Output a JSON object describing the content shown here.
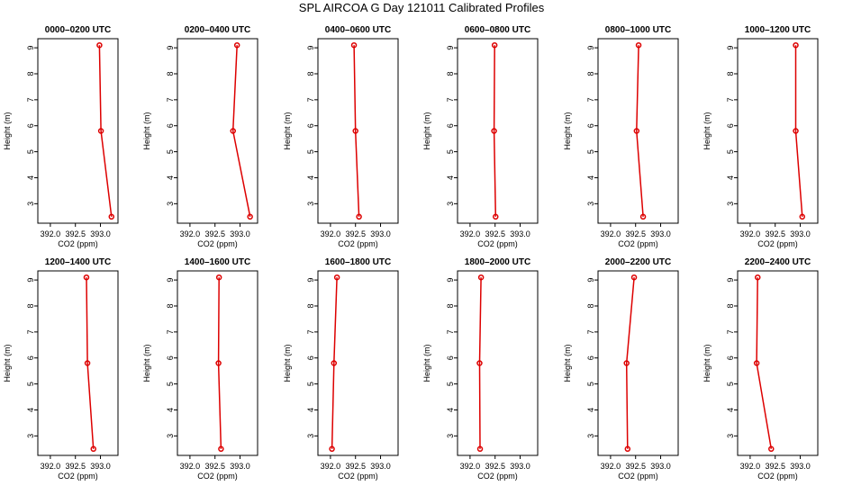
{
  "title": "SPL AIRCOA G  Day 121011  Calibrated Profiles",
  "colors": {
    "line": "#dd0000",
    "axis": "#000000"
  },
  "chart_data": {
    "type": "line",
    "xlabel": "CO2 (ppm)",
    "ylabel": "Height (m)",
    "xlim": [
      391.75,
      393.35
    ],
    "ylim": [
      2.25,
      9.35
    ],
    "xticks": [
      "392.0",
      "392.5",
      "393.0"
    ],
    "yticks": [
      "3",
      "4",
      "5",
      "6",
      "7",
      "8",
      "9"
    ],
    "panels": [
      {
        "title": "0000–0200 UTC",
        "points": [
          {
            "x": 393.22,
            "y": 2.5
          },
          {
            "x": 393.01,
            "y": 5.8
          },
          {
            "x": 392.98,
            "y": 9.1
          }
        ]
      },
      {
        "title": "0200–0400 UTC",
        "points": [
          {
            "x": 393.2,
            "y": 2.5
          },
          {
            "x": 392.86,
            "y": 5.8
          },
          {
            "x": 392.94,
            "y": 9.1
          }
        ]
      },
      {
        "title": "0400–0600 UTC",
        "points": [
          {
            "x": 392.57,
            "y": 2.5
          },
          {
            "x": 392.5,
            "y": 5.8
          },
          {
            "x": 392.47,
            "y": 9.1
          }
        ]
      },
      {
        "title": "0600–0800 UTC",
        "points": [
          {
            "x": 392.51,
            "y": 2.5
          },
          {
            "x": 392.48,
            "y": 5.8
          },
          {
            "x": 392.49,
            "y": 9.1
          }
        ]
      },
      {
        "title": "0800–1000 UTC",
        "points": [
          {
            "x": 392.65,
            "y": 2.5
          },
          {
            "x": 392.52,
            "y": 5.8
          },
          {
            "x": 392.56,
            "y": 9.1
          }
        ]
      },
      {
        "title": "1000–1200 UTC",
        "points": [
          {
            "x": 393.04,
            "y": 2.5
          },
          {
            "x": 392.91,
            "y": 5.8
          },
          {
            "x": 392.91,
            "y": 9.1
          }
        ]
      },
      {
        "title": "1200–1400 UTC",
        "points": [
          {
            "x": 392.86,
            "y": 2.5
          },
          {
            "x": 392.74,
            "y": 5.8
          },
          {
            "x": 392.72,
            "y": 9.1
          }
        ]
      },
      {
        "title": "1400–1600 UTC",
        "points": [
          {
            "x": 392.62,
            "y": 2.5
          },
          {
            "x": 392.57,
            "y": 5.8
          },
          {
            "x": 392.58,
            "y": 9.1
          }
        ]
      },
      {
        "title": "1600–1800 UTC",
        "points": [
          {
            "x": 392.03,
            "y": 2.5
          },
          {
            "x": 392.07,
            "y": 5.8
          },
          {
            "x": 392.13,
            "y": 9.1
          }
        ]
      },
      {
        "title": "1800–2000 UTC",
        "points": [
          {
            "x": 392.2,
            "y": 2.5
          },
          {
            "x": 392.19,
            "y": 5.8
          },
          {
            "x": 392.22,
            "y": 9.1
          }
        ]
      },
      {
        "title": "2000–2200 UTC",
        "points": [
          {
            "x": 392.34,
            "y": 2.5
          },
          {
            "x": 392.32,
            "y": 5.8
          },
          {
            "x": 392.47,
            "y": 9.1
          }
        ]
      },
      {
        "title": "2200–2400 UTC",
        "points": [
          {
            "x": 392.42,
            "y": 2.5
          },
          {
            "x": 392.13,
            "y": 5.8
          },
          {
            "x": 392.15,
            "y": 9.1
          }
        ]
      }
    ]
  }
}
